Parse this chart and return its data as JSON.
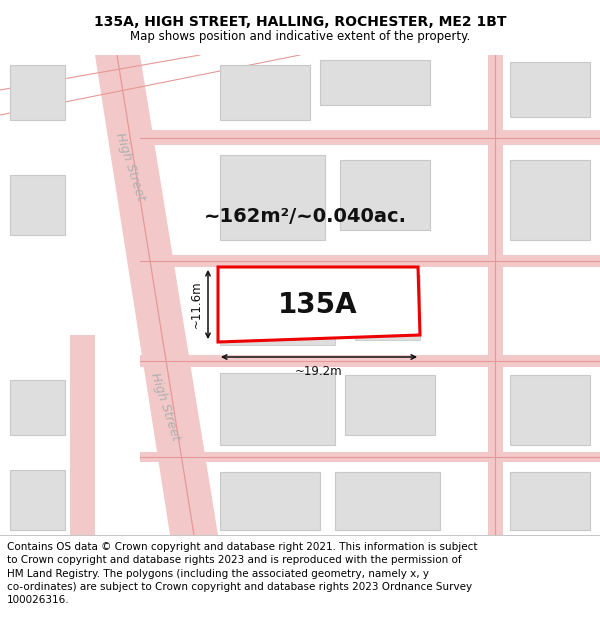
{
  "title": "135A, HIGH STREET, HALLING, ROCHESTER, ME2 1BT",
  "subtitle": "Map shows position and indicative extent of the property.",
  "footer": "Contains OS data © Crown copyright and database right 2021. This information is subject\nto Crown copyright and database rights 2023 and is reproduced with the permission of\nHM Land Registry. The polygons (including the associated geometry, namely x, y\nco-ordinates) are subject to Crown copyright and database rights 2023 Ordnance Survey\n100026316.",
  "map_bg": "#f8f8f8",
  "road_fill": "#f2c8c8",
  "road_line": "#e89898",
  "building_fill": "#dedede",
  "building_edge": "#c8c8c8",
  "subject_fill": "#ffffff",
  "subject_edge": "#ee0000",
  "subject_lw": 2.2,
  "dim_color": "#111111",
  "area_text": "~162m²/~0.040ac.",
  "label_135a": "135A",
  "dim_w_label": "~19.2m",
  "dim_h_label": "~11.6m",
  "street_label": "High Street",
  "title_fontsize": 10,
  "subtitle_fontsize": 8.5,
  "footer_fontsize": 7.5,
  "area_fontsize": 14,
  "label_fontsize": 20,
  "dim_fontsize": 8.5,
  "street_fontsize": 9
}
